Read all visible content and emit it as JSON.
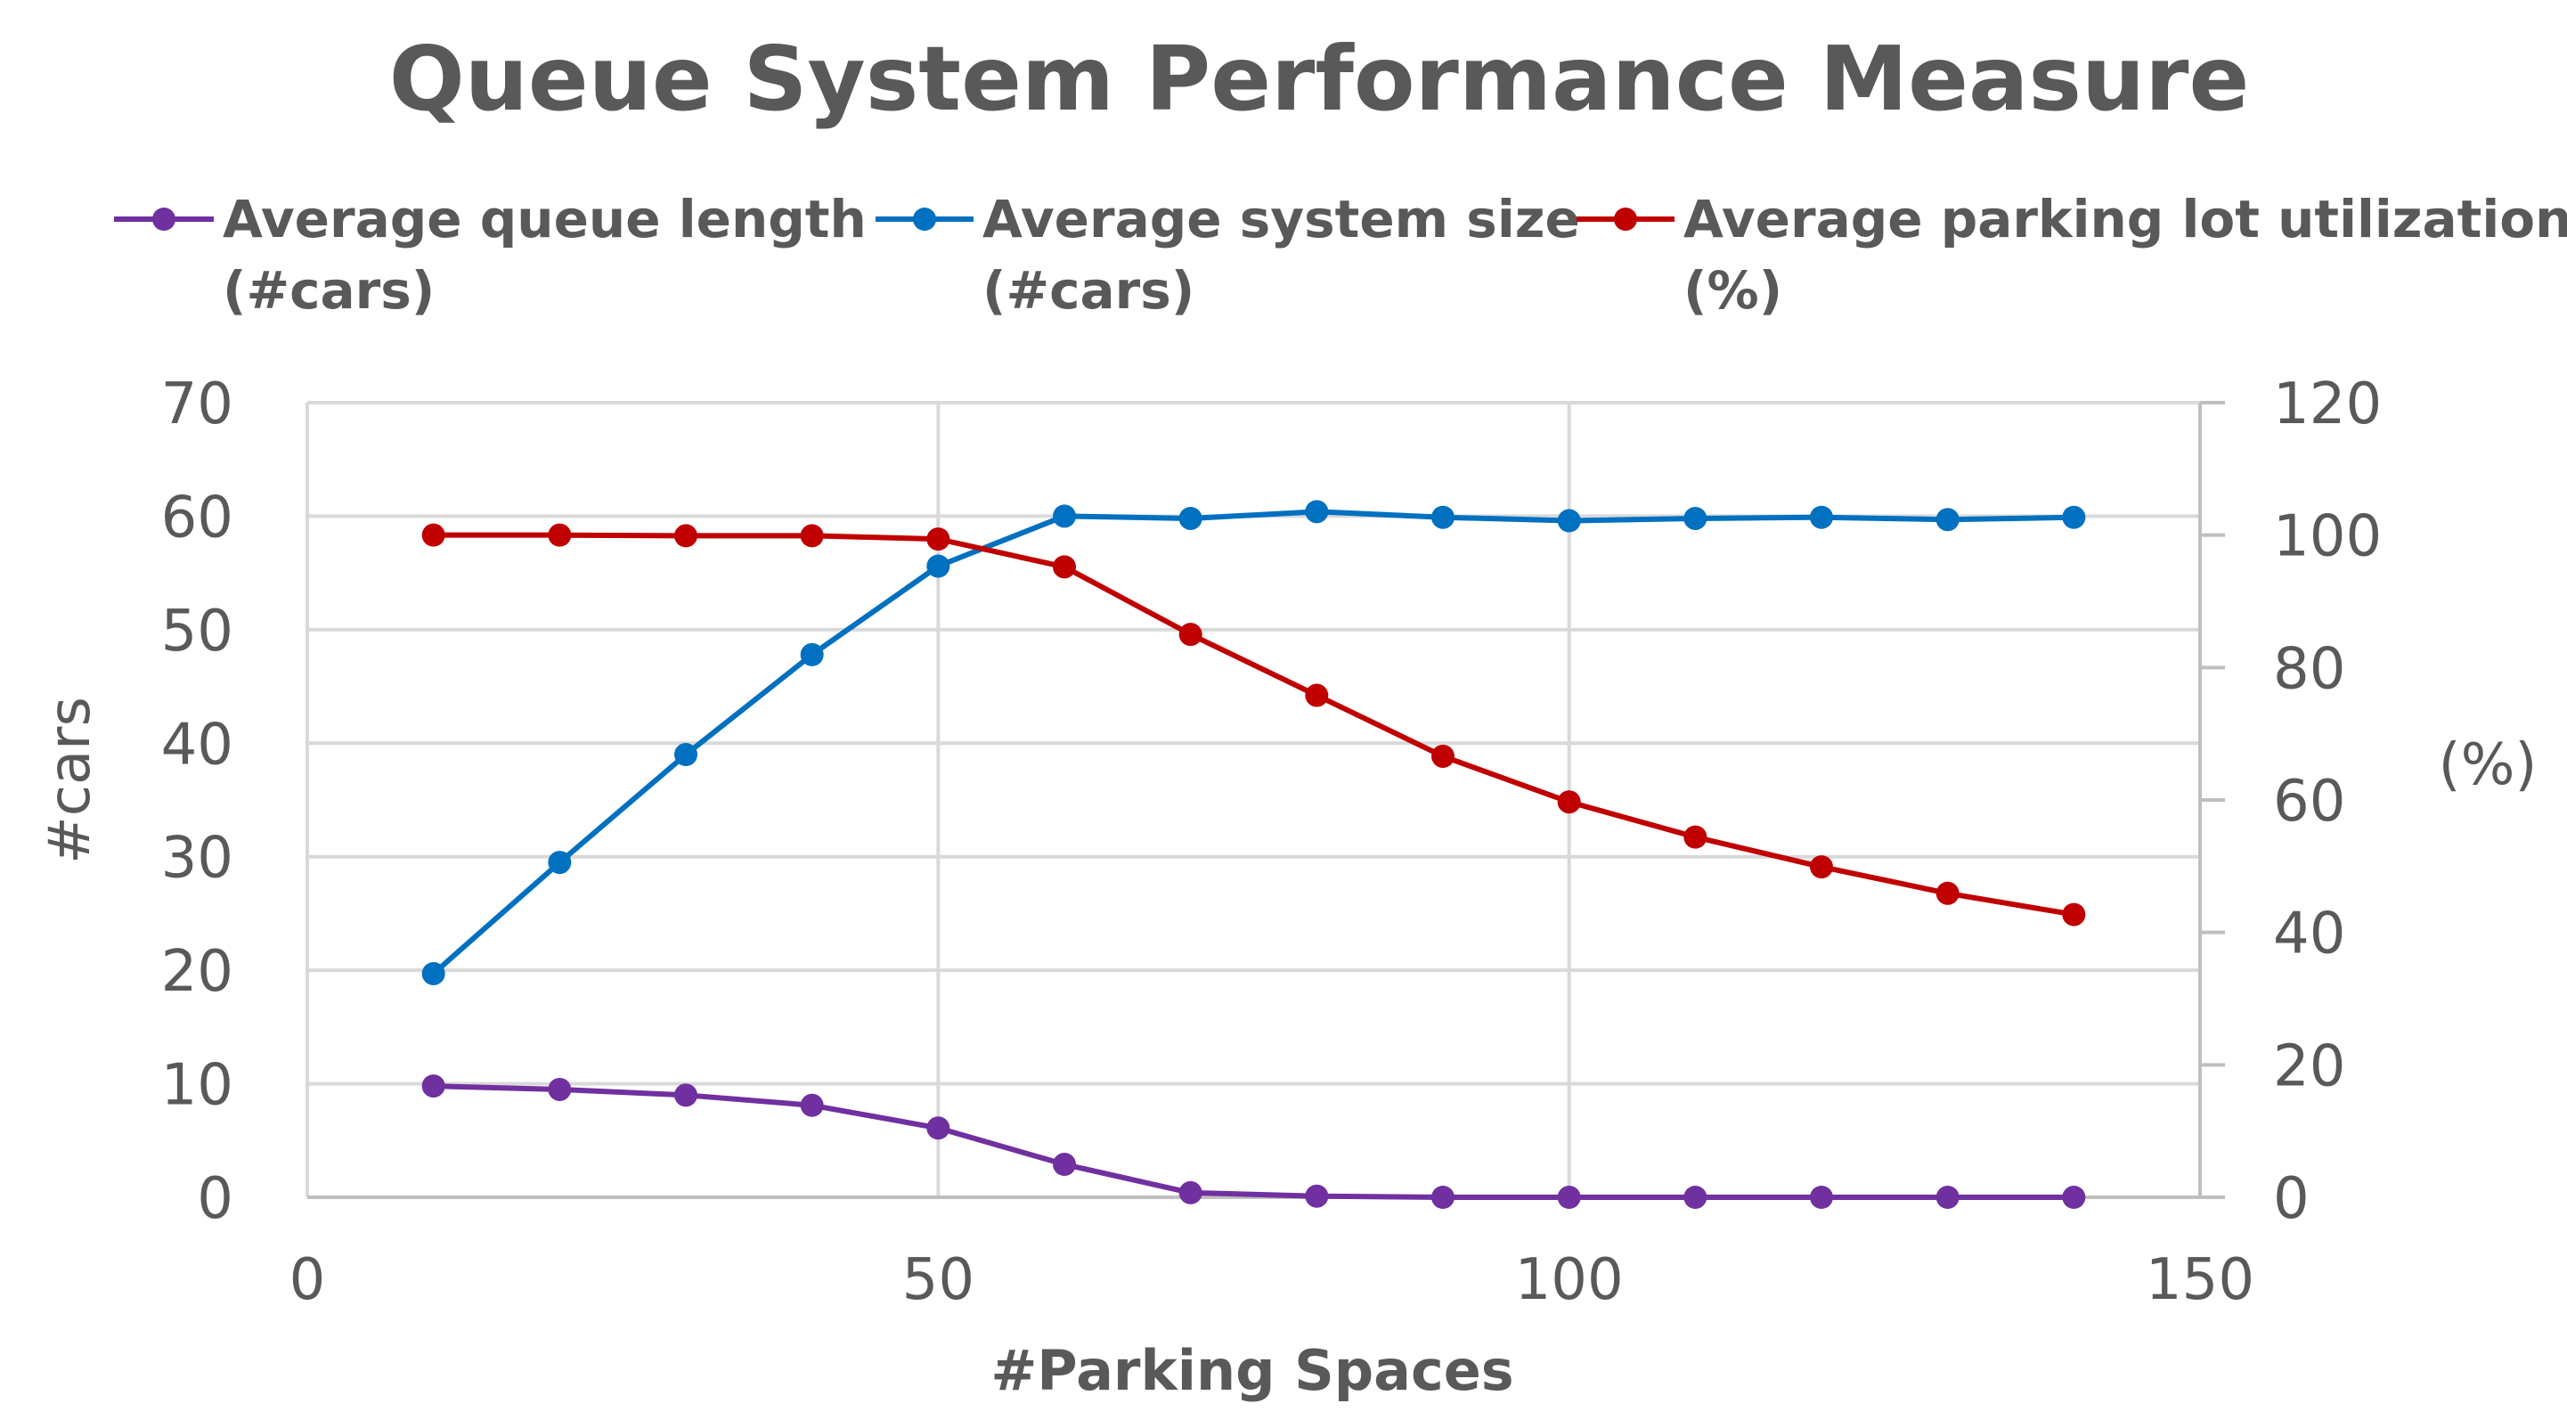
{
  "chart_data": {
    "type": "line",
    "title": "Queue System Performance Measure",
    "xlabel": "#Parking Spaces",
    "ylabel": "#cars",
    "y2label": "(%)",
    "xlim": [
      0,
      150
    ],
    "ylim": [
      0,
      70
    ],
    "y2lim": [
      0,
      120
    ],
    "x_ticks": [
      "0",
      "50",
      "100",
      "150"
    ],
    "y_ticks": [
      "0",
      "10",
      "20",
      "30",
      "40",
      "50",
      "60",
      "70"
    ],
    "y2_ticks": [
      "0",
      "20",
      "40",
      "60",
      "80",
      "100",
      "120"
    ],
    "grid": true,
    "legend_position": "top",
    "x": [
      10,
      20,
      30,
      40,
      50,
      60,
      70,
      80,
      90,
      100,
      110,
      120,
      130,
      140
    ],
    "series": [
      {
        "name": "Average queue length (#cars)",
        "legend_lines": [
          "Average queue length",
          "(#cars)"
        ],
        "axis": "left",
        "color": "#7030A0",
        "values": [
          9.8,
          9.5,
          9.0,
          8.1,
          6.1,
          2.9,
          0.4,
          0.1,
          0.0,
          0.0,
          0.0,
          0.0,
          0.0,
          0.0
        ]
      },
      {
        "name": "Average system size (#cars)",
        "legend_lines": [
          "Average system size",
          "(#cars)"
        ],
        "axis": "left",
        "color": "#0070C0",
        "values": [
          19.7,
          29.5,
          39.0,
          47.8,
          55.6,
          60.0,
          59.8,
          60.4,
          59.9,
          59.6,
          59.8,
          59.9,
          59.7,
          59.9
        ]
      },
      {
        "name": "Average parking lot utilization (%)",
        "legend_lines": [
          "Average parking lot utilization",
          "(%)"
        ],
        "axis": "right",
        "color": "#C00000",
        "values": [
          100.0,
          100.0,
          99.9,
          99.9,
          99.4,
          95.2,
          85.0,
          75.8,
          66.6,
          59.7,
          54.4,
          49.9,
          45.9,
          42.7
        ]
      }
    ]
  }
}
